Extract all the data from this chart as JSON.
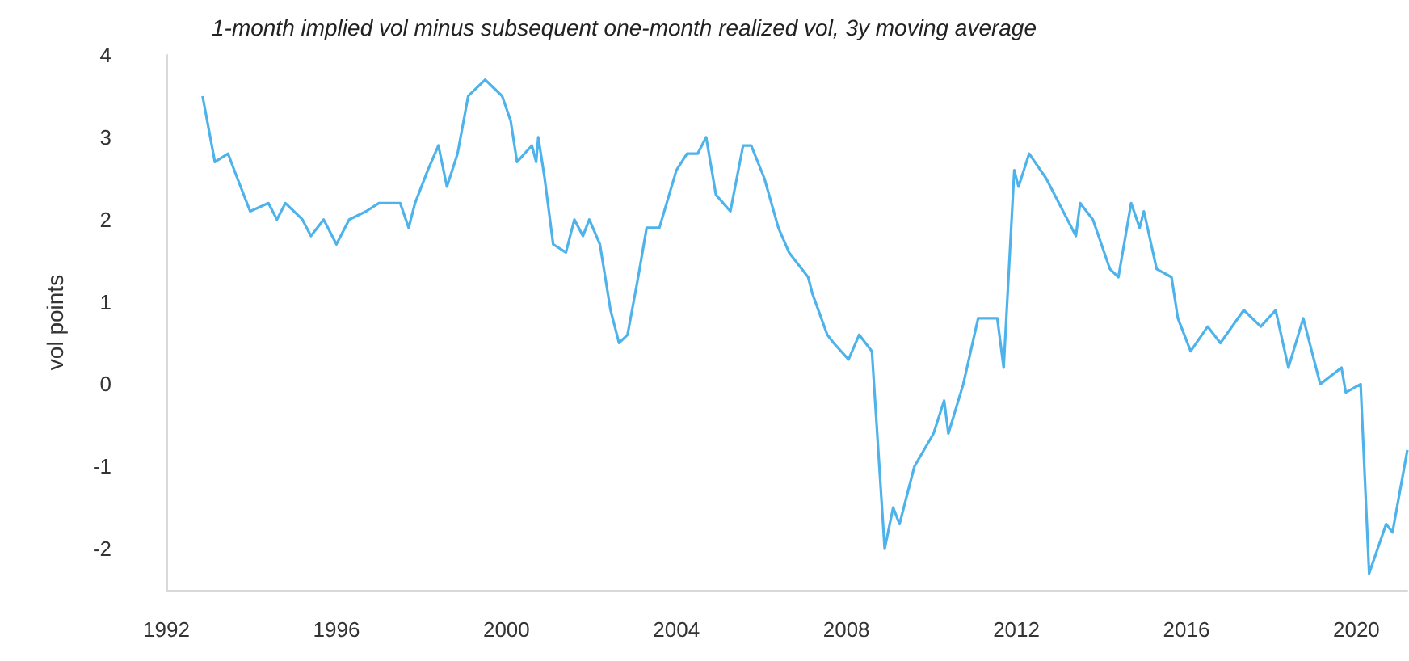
{
  "chart_data": {
    "type": "line",
    "title": "1-month implied vol minus subsequent one-month realized vol, 3y moving average",
    "ylabel": "vol points",
    "x": [
      1992.85,
      1993.14,
      1993.45,
      1993.67,
      1993.97,
      1994.4,
      1994.6,
      1994.8,
      1995.2,
      1995.4,
      1995.7,
      1996.0,
      1996.3,
      1996.7,
      1997.0,
      1997.5,
      1997.7,
      1997.85,
      1998.15,
      1998.4,
      1998.6,
      1998.85,
      1999.1,
      1999.5,
      1999.7,
      1999.9,
      2000.1,
      2000.25,
      2000.6,
      2000.7,
      2000.75,
      2000.9,
      2001.1,
      2001.4,
      2001.6,
      2001.8,
      2001.95,
      2002.2,
      2002.45,
      2002.65,
      2002.85,
      2003.1,
      2003.3,
      2003.6,
      2004.0,
      2004.25,
      2004.5,
      2004.7,
      2004.93,
      2005.27,
      2005.57,
      2005.76,
      2006.07,
      2006.4,
      2006.65,
      2007.1,
      2007.2,
      2007.55,
      2007.7,
      2008.05,
      2008.3,
      2008.6,
      2008.9,
      2009.1,
      2009.25,
      2009.6,
      2010.05,
      2010.3,
      2010.4,
      2010.75,
      2011.1,
      2011.55,
      2011.7,
      2011.95,
      2012.05,
      2012.3,
      2012.7,
      2013.1,
      2013.4,
      2013.5,
      2013.8,
      2014.2,
      2014.4,
      2014.7,
      2014.9,
      2015.0,
      2015.3,
      2015.65,
      2015.8,
      2016.1,
      2016.5,
      2016.8,
      2017.35,
      2017.75,
      2018.1,
      2018.4,
      2018.75,
      2019.15,
      2019.65,
      2019.75,
      2020.1,
      2020.3,
      2020.7,
      2020.85,
      2021.2
    ],
    "series": [
      {
        "color": "#4db3ea",
        "values": [
          3.5,
          2.7,
          2.8,
          2.5,
          2.1,
          2.2,
          2.0,
          2.2,
          2.0,
          1.8,
          2.0,
          1.7,
          2.0,
          2.1,
          2.2,
          2.2,
          1.9,
          2.2,
          2.6,
          2.9,
          2.4,
          2.8,
          3.5,
          3.7,
          3.6,
          3.5,
          3.2,
          2.7,
          2.9,
          2.7,
          3.0,
          2.5,
          1.7,
          1.6,
          2.0,
          1.8,
          2.0,
          1.7,
          0.9,
          0.5,
          0.6,
          1.3,
          1.9,
          1.9,
          2.6,
          2.8,
          2.8,
          3.0,
          2.3,
          2.1,
          2.9,
          2.9,
          2.5,
          1.9,
          1.6,
          1.3,
          1.1,
          0.6,
          0.5,
          0.3,
          0.6,
          0.4,
          -2.0,
          -1.5,
          -1.7,
          -1.0,
          -0.6,
          -0.2,
          -0.6,
          0.0,
          0.8,
          0.8,
          0.2,
          2.6,
          2.4,
          2.8,
          2.5,
          2.1,
          1.8,
          2.2,
          2.0,
          1.4,
          1.3,
          2.2,
          1.9,
          2.1,
          1.4,
          1.3,
          0.8,
          0.4,
          0.7,
          0.5,
          0.9,
          0.7,
          0.9,
          0.2,
          0.8,
          0.0,
          0.2,
          -0.1,
          0.0,
          -2.3,
          -1.7,
          -1.8,
          -0.8
        ]
      }
    ],
    "xlim": [
      1992,
      2021.2
    ],
    "xticks": [
      1992,
      1996,
      2000,
      2004,
      2008,
      2012,
      2016,
      2020
    ],
    "ylim": [
      -2.5,
      4
    ],
    "yticks": [
      -2,
      -1,
      0,
      1,
      2,
      3,
      4
    ],
    "grid": false,
    "marker": "none",
    "line_style": "solid"
  }
}
